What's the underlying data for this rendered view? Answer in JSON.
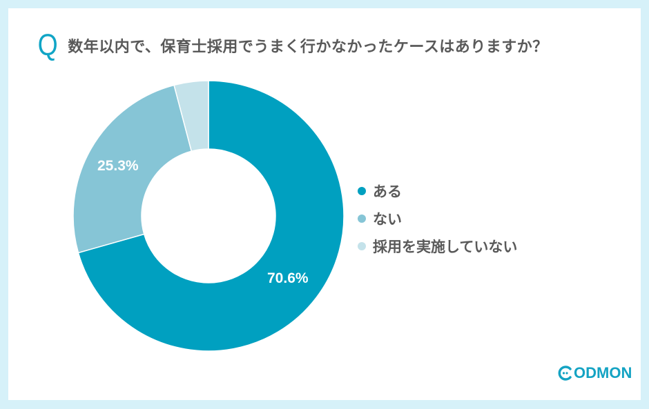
{
  "question": {
    "marker": "Q",
    "text": "数年以内で、保育士採用でうまく行かなかったケースはありますか？"
  },
  "colors": {
    "background": "#d6f1f9",
    "card": "#ffffff",
    "accent": "#11a5c6",
    "text": "#595959"
  },
  "chart_data": {
    "type": "pie",
    "subtype": "donut",
    "title": "数年以内で、保育士採用でうまく行かなかったケースはありますか？",
    "categories": [
      "ある",
      "ない",
      "採用を実施していない"
    ],
    "values": [
      70.6,
      25.3,
      4.1
    ],
    "unit": "%",
    "colors": [
      "#00a0c0",
      "#86c5d6",
      "#c4e2ea"
    ],
    "data_labels": [
      "70.6%",
      "25.3%",
      ""
    ],
    "legend_position": "right",
    "start_angle": "12 o'clock, clockwise"
  },
  "labels": {
    "slice_0": "70.6%",
    "slice_1": "25.3%"
  },
  "legend": {
    "items": [
      {
        "label": "ある",
        "color": "#00a0c0"
      },
      {
        "label": "ない",
        "color": "#86c5d6"
      },
      {
        "label": "採用を実施していない",
        "color": "#c4e2ea"
      }
    ]
  },
  "logo": {
    "text": "ODMON",
    "brand": "CODMON"
  }
}
